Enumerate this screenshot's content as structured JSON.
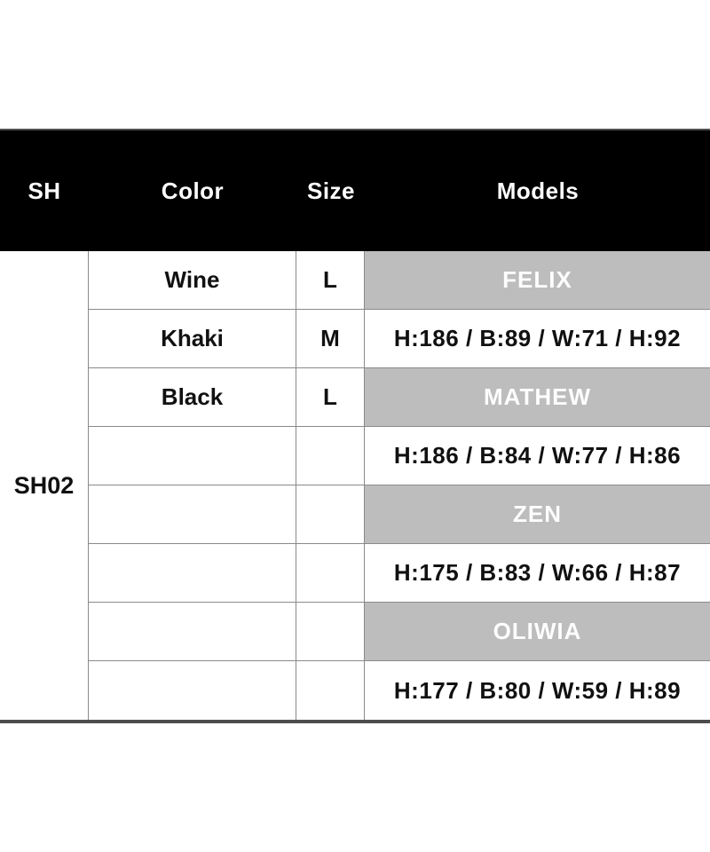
{
  "header": {
    "columns": [
      "SH",
      "Color",
      "Size",
      "Models"
    ]
  },
  "product": {
    "id": "SH02"
  },
  "rows": [
    {
      "color": "Wine",
      "size": "L",
      "models": "FELIX",
      "type": "model"
    },
    {
      "color": "Khaki",
      "size": "M",
      "models": "H:186 / B:89 / W:71 / H:92",
      "type": "measurements"
    },
    {
      "color": "Black",
      "size": "L",
      "models": "MATHEW",
      "type": "model"
    },
    {
      "color": "",
      "size": "",
      "models": "H:186 / B:84 / W:77 / H:86",
      "type": "measurements"
    },
    {
      "color": "",
      "size": "",
      "models": "ZEN",
      "type": "model"
    },
    {
      "color": "",
      "size": "",
      "models": "H:175 / B:83 / W:66 / H:87",
      "type": "measurements"
    },
    {
      "color": "",
      "size": "",
      "models": "OLIWIA",
      "type": "model"
    },
    {
      "color": "",
      "size": "",
      "models": "H:177 / B:80 / W:59 / H:89",
      "type": "measurements"
    }
  ],
  "colors": {
    "header_bg": "#000000",
    "header_text": "#fdfdfd",
    "model_cell_bg": "#bdbdbd",
    "model_cell_text": "#fdfdfd",
    "body_text": "#111111",
    "grid_line": "#8a8a8a",
    "bottom_bar": "#4d4d4d"
  }
}
